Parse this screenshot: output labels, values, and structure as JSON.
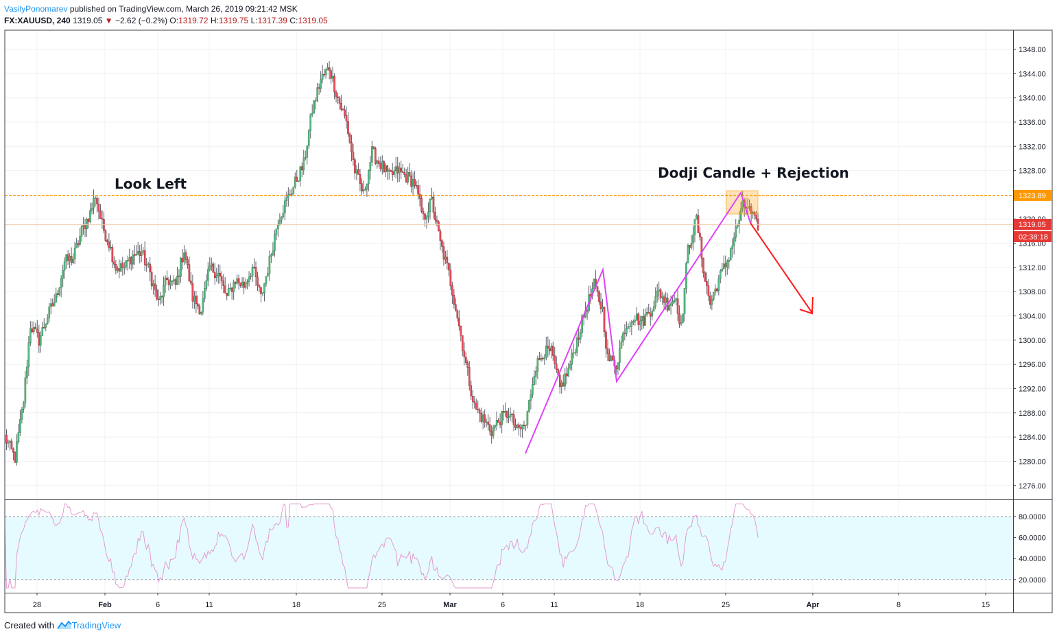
{
  "header": {
    "author": "VasilyPonomarev",
    "published_text": "published on TradingView.com, March 26, 2019 09:21:42 MSK"
  },
  "ohlc": {
    "symbol": "FX:XAUUSD, 240",
    "last": "1319.05",
    "change": "−2.62 (−0.2%)",
    "open_label": "O:",
    "open": "1319.72",
    "high_label": "H:",
    "high": "1319.75",
    "low_label": "L:",
    "low": "1317.39",
    "close_label": "C:",
    "close": "1319.05"
  },
  "footer": {
    "created_with": "Created with",
    "brand": "TradingView"
  },
  "colors": {
    "up": "#53b987",
    "down": "#eb4d5c",
    "resistance": "#ff9800",
    "pattern": "#e040fb",
    "arrow": "#ff1a1a",
    "rsi": "#e39ad0",
    "rsi_band": "#e6fbff"
  },
  "chart_data": {
    "type": "candlestick",
    "price_axis": {
      "ticks": [
        "1348.00",
        "1344.00",
        "1340.00",
        "1336.00",
        "1332.00",
        "1328.00",
        "1320.00",
        "1316.00",
        "1312.00",
        "1308.00",
        "1304.00",
        "1300.00",
        "1296.00",
        "1292.00",
        "1288.00",
        "1284.00",
        "1280.00",
        "1276.00"
      ],
      "ylim": [
        1274.5,
        1350.5
      ]
    },
    "time_axis": {
      "ticks": [
        "28",
        "Feb",
        "6",
        "11",
        "18",
        "25",
        "Mar",
        "6",
        "11",
        "18",
        "25",
        "Apr",
        "8",
        "15"
      ]
    },
    "price_labels": {
      "resistance": "1323.89",
      "last_price": "1319.05",
      "countdown": "02:38:18"
    },
    "resistance_level": 1323.89,
    "last_price_level": 1319.05,
    "annotations": [
      "Look Left",
      "Dodji Candle + Rejection"
    ],
    "rsi": {
      "ticks": [
        "80.0000",
        "60.0000",
        "40.0000",
        "20.0000"
      ],
      "band": [
        20,
        80
      ],
      "ylim": [
        10,
        95
      ]
    },
    "anchors": [
      {
        "i": 0,
        "v": 1284
      },
      {
        "i": 6,
        "v": 1280.5
      },
      {
        "i": 11,
        "v": 1290
      },
      {
        "i": 15,
        "v": 1302.5
      },
      {
        "i": 20,
        "v": 1300
      },
      {
        "i": 25,
        "v": 1304
      },
      {
        "i": 30,
        "v": 1307
      },
      {
        "i": 35,
        "v": 1313
      },
      {
        "i": 40,
        "v": 1313.5
      },
      {
        "i": 45,
        "v": 1318
      },
      {
        "i": 50,
        "v": 1321
      },
      {
        "i": 53,
        "v": 1324
      },
      {
        "i": 57,
        "v": 1319
      },
      {
        "i": 61,
        "v": 1316
      },
      {
        "i": 65,
        "v": 1312
      },
      {
        "i": 70,
        "v": 1312
      },
      {
        "i": 75,
        "v": 1314
      },
      {
        "i": 80,
        "v": 1314.5
      },
      {
        "i": 85,
        "v": 1311
      },
      {
        "i": 90,
        "v": 1306
      },
      {
        "i": 95,
        "v": 1310
      },
      {
        "i": 100,
        "v": 1309
      },
      {
        "i": 105,
        "v": 1315
      },
      {
        "i": 110,
        "v": 1307
      },
      {
        "i": 115,
        "v": 1305
      },
      {
        "i": 120,
        "v": 1312
      },
      {
        "i": 125,
        "v": 1311
      },
      {
        "i": 130,
        "v": 1307
      },
      {
        "i": 135,
        "v": 1310
      },
      {
        "i": 140,
        "v": 1309
      },
      {
        "i": 145,
        "v": 1312
      },
      {
        "i": 150,
        "v": 1307
      },
      {
        "i": 155,
        "v": 1313
      },
      {
        "i": 160,
        "v": 1320
      },
      {
        "i": 165,
        "v": 1323
      },
      {
        "i": 170,
        "v": 1326
      },
      {
        "i": 175,
        "v": 1329
      },
      {
        "i": 180,
        "v": 1338
      },
      {
        "i": 185,
        "v": 1343
      },
      {
        "i": 190,
        "v": 1345
      },
      {
        "i": 195,
        "v": 1340
      },
      {
        "i": 200,
        "v": 1336
      },
      {
        "i": 205,
        "v": 1328
      },
      {
        "i": 210,
        "v": 1324
      },
      {
        "i": 215,
        "v": 1331
      },
      {
        "i": 220,
        "v": 1329
      },
      {
        "i": 225,
        "v": 1327
      },
      {
        "i": 230,
        "v": 1328
      },
      {
        "i": 235,
        "v": 1327
      },
      {
        "i": 240,
        "v": 1326
      },
      {
        "i": 245,
        "v": 1320
      },
      {
        "i": 250,
        "v": 1323
      },
      {
        "i": 255,
        "v": 1316
      },
      {
        "i": 260,
        "v": 1311
      },
      {
        "i": 265,
        "v": 1304
      },
      {
        "i": 270,
        "v": 1296
      },
      {
        "i": 275,
        "v": 1289
      },
      {
        "i": 280,
        "v": 1287
      },
      {
        "i": 285,
        "v": 1285
      },
      {
        "i": 290,
        "v": 1287
      },
      {
        "i": 295,
        "v": 1288
      },
      {
        "i": 300,
        "v": 1285
      },
      {
        "i": 305,
        "v": 1286
      },
      {
        "i": 310,
        "v": 1295
      },
      {
        "i": 315,
        "v": 1298
      },
      {
        "i": 320,
        "v": 1298
      },
      {
        "i": 325,
        "v": 1292
      },
      {
        "i": 330,
        "v": 1295
      },
      {
        "i": 335,
        "v": 1300
      },
      {
        "i": 340,
        "v": 1305
      },
      {
        "i": 345,
        "v": 1309
      },
      {
        "i": 350,
        "v": 1305
      },
      {
        "i": 353,
        "v": 1297
      },
      {
        "i": 358,
        "v": 1296
      },
      {
        "i": 363,
        "v": 1302
      },
      {
        "i": 368,
        "v": 1304
      },
      {
        "i": 373,
        "v": 1303
      },
      {
        "i": 378,
        "v": 1305
      },
      {
        "i": 383,
        "v": 1308
      },
      {
        "i": 388,
        "v": 1306
      },
      {
        "i": 393,
        "v": 1307
      },
      {
        "i": 396,
        "v": 1302
      },
      {
        "i": 400,
        "v": 1315
      },
      {
        "i": 405,
        "v": 1320
      },
      {
        "i": 410,
        "v": 1310
      },
      {
        "i": 413,
        "v": 1306
      },
      {
        "i": 418,
        "v": 1310
      },
      {
        "i": 423,
        "v": 1313
      },
      {
        "i": 428,
        "v": 1318
      },
      {
        "i": 432,
        "v": 1322
      },
      {
        "i": 435,
        "v": 1322
      },
      {
        "i": 440,
        "v": 1319
      }
    ]
  }
}
